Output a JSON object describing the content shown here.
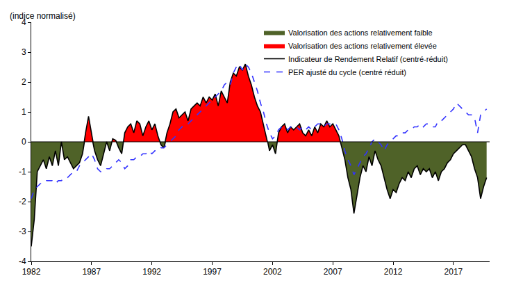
{
  "chart_data": {
    "type": "line",
    "y_label": "(indice normalisé)",
    "x": [
      1982,
      1982.25,
      1982.5,
      1982.75,
      1983,
      1983.25,
      1983.5,
      1983.75,
      1984,
      1984.25,
      1984.5,
      1984.75,
      1985,
      1985.25,
      1985.5,
      1985.75,
      1986,
      1986.25,
      1986.5,
      1986.75,
      1987,
      1987.25,
      1987.5,
      1987.75,
      1988,
      1988.25,
      1988.5,
      1988.75,
      1989,
      1989.25,
      1989.5,
      1989.75,
      1990,
      1990.25,
      1990.5,
      1990.75,
      1991,
      1991.25,
      1991.5,
      1991.75,
      1992,
      1992.25,
      1992.5,
      1992.75,
      1993,
      1993.25,
      1993.5,
      1993.75,
      1994,
      1994.25,
      1994.5,
      1994.75,
      1995,
      1995.25,
      1995.5,
      1995.75,
      1996,
      1996.25,
      1996.5,
      1996.75,
      1997,
      1997.25,
      1997.5,
      1997.75,
      1998,
      1998.25,
      1998.5,
      1998.75,
      1999,
      1999.25,
      1999.5,
      1999.75,
      2000,
      2000.25,
      2000.5,
      2000.75,
      2001,
      2001.25,
      2001.5,
      2001.75,
      2002,
      2002.25,
      2002.5,
      2002.75,
      2003,
      2003.25,
      2003.5,
      2003.75,
      2004,
      2004.25,
      2004.5,
      2004.75,
      2005,
      2005.25,
      2005.5,
      2005.75,
      2006,
      2006.25,
      2006.5,
      2006.75,
      2007,
      2007.25,
      2007.5,
      2007.75,
      2008,
      2008.25,
      2008.5,
      2008.75,
      2009,
      2009.25,
      2009.5,
      2009.75,
      2010,
      2010.25,
      2010.5,
      2010.75,
      2011,
      2011.25,
      2011.5,
      2011.75,
      2012,
      2012.25,
      2012.5,
      2012.75,
      2013,
      2013.25,
      2013.5,
      2013.75,
      2014,
      2014.25,
      2014.5,
      2014.75,
      2015,
      2015.25,
      2015.5,
      2015.75,
      2016,
      2016.25,
      2016.5,
      2016.75,
      2017,
      2017.25,
      2017.5,
      2017.75,
      2018,
      2018.25,
      2018.5,
      2018.75,
      2019,
      2019.25,
      2019.5,
      2019.75
    ],
    "xlim": [
      1982,
      2020
    ],
    "xticks": [
      1982,
      1987,
      1992,
      1997,
      2002,
      2007,
      2012,
      2017
    ],
    "ylim": [
      -4,
      4
    ],
    "yticks": [
      -4,
      -3,
      -2,
      -1,
      0,
      1,
      2,
      3,
      4
    ],
    "grid": false,
    "legend": "top",
    "series": [
      {
        "name": "Indicateur de Rendement Relatif (centré-réduit)",
        "color": "#000000",
        "line_style": "solid",
        "fill": {
          "below": {
            "name": "Valorisation des actions relativement faible",
            "color": "#4f6228"
          },
          "above": {
            "name": "Valorisation des actions relativement élevée",
            "color": "#ff0000"
          }
        },
        "values": [
          -3.5,
          -2.6,
          -1.0,
          -0.8,
          -0.6,
          -0.9,
          -0.5,
          -0.8,
          -0.3,
          -0.8,
          0.0,
          -0.6,
          -0.5,
          -0.7,
          -0.9,
          -0.8,
          -0.7,
          -0.4,
          0.3,
          0.85,
          0.2,
          -0.3,
          -0.6,
          -0.8,
          -0.4,
          0.0,
          -0.3,
          0.1,
          0.05,
          -0.2,
          -0.4,
          0.3,
          0.5,
          0.6,
          0.3,
          0.7,
          0.6,
          0.2,
          0.5,
          0.7,
          0.4,
          0.6,
          0.2,
          -0.1,
          -0.2,
          0.3,
          0.6,
          1.0,
          1.1,
          0.8,
          0.9,
          1.0,
          0.7,
          1.1,
          1.2,
          1.3,
          1.2,
          1.5,
          1.3,
          1.5,
          1.4,
          1.6,
          1.2,
          1.7,
          1.5,
          1.3,
          2.0,
          2.3,
          2.2,
          2.5,
          2.4,
          2.6,
          2.2,
          1.9,
          1.5,
          1.2,
          1.0,
          0.6,
          0.2,
          -0.3,
          -0.1,
          -0.4,
          0.3,
          0.5,
          0.6,
          0.3,
          0.5,
          0.4,
          0.5,
          0.6,
          0.3,
          0.2,
          0.4,
          0.2,
          0.5,
          0.3,
          0.6,
          0.5,
          0.7,
          0.5,
          0.6,
          0.4,
          0.2,
          -0.2,
          -0.6,
          -1.2,
          -1.6,
          -2.4,
          -1.8,
          -1.2,
          -0.8,
          -1.0,
          -0.5,
          -0.8,
          -0.3,
          -0.6,
          -0.8,
          -1.2,
          -1.6,
          -1.9,
          -1.6,
          -1.7,
          -1.4,
          -1.2,
          -1.3,
          -1.0,
          -1.2,
          -0.9,
          -0.8,
          -1.1,
          -0.9,
          -1.0,
          -0.9,
          -1.2,
          -1.0,
          -1.3,
          -1.0,
          -0.9,
          -0.7,
          -0.6,
          -0.4,
          -0.3,
          -0.2,
          -0.1,
          -0.1,
          -0.3,
          -0.5,
          -0.9,
          -1.2,
          -1.9,
          -1.5,
          -1.2
        ]
      },
      {
        "name": "PER ajusté du cycle (centré réduit)",
        "color": "#3333ff",
        "line_style": "dashed",
        "values": [
          -1.9,
          -1.6,
          -1.5,
          -1.4,
          -1.4,
          -1.3,
          -1.3,
          -1.3,
          -1.4,
          -1.3,
          -1.3,
          -1.2,
          -1.2,
          -1.1,
          -1.0,
          -1.0,
          -0.8,
          -0.7,
          -0.6,
          -0.5,
          -0.4,
          -0.6,
          -0.9,
          -1.0,
          -1.0,
          -0.9,
          -0.9,
          -0.8,
          -0.7,
          -0.6,
          -0.7,
          -0.9,
          -0.8,
          -0.6,
          -0.6,
          -0.5,
          -0.5,
          -0.4,
          -0.4,
          -0.3,
          -0.4,
          -0.3,
          -0.3,
          -0.2,
          -0.2,
          -0.1,
          0.0,
          0.1,
          0.2,
          0.4,
          0.5,
          0.6,
          0.6,
          0.7,
          0.8,
          0.9,
          1.0,
          1.1,
          1.2,
          1.3,
          1.4,
          1.5,
          1.6,
          1.7,
          1.9,
          2.0,
          1.9,
          2.3,
          2.5,
          2.6,
          2.4,
          2.6,
          2.5,
          2.3,
          2.0,
          1.7,
          1.3,
          1.0,
          0.6,
          0.3,
          0.1,
          0.2,
          0.4,
          0.5,
          0.5,
          0.4,
          0.5,
          0.5,
          0.5,
          0.4,
          0.5,
          0.4,
          0.5,
          0.4,
          0.5,
          0.6,
          0.6,
          0.5,
          0.6,
          0.6,
          0.6,
          0.6,
          0.4,
          0.1,
          -0.3,
          -0.6,
          -0.8,
          -1.1,
          -0.9,
          -0.7,
          -0.5,
          -0.4,
          -0.2,
          0.0,
          0.1,
          0.0,
          -0.1,
          -0.3,
          -0.1,
          0.0,
          0.1,
          0.2,
          0.2,
          0.3,
          0.3,
          0.4,
          0.4,
          0.5,
          0.5,
          0.6,
          0.5,
          0.6,
          0.6,
          0.5,
          0.5,
          0.7,
          0.7,
          0.8,
          0.9,
          1.0,
          1.1,
          1.3,
          1.2,
          1.1,
          1.0,
          0.9,
          0.9,
          0.8,
          0.3,
          0.9,
          1.0,
          1.1
        ]
      }
    ]
  }
}
